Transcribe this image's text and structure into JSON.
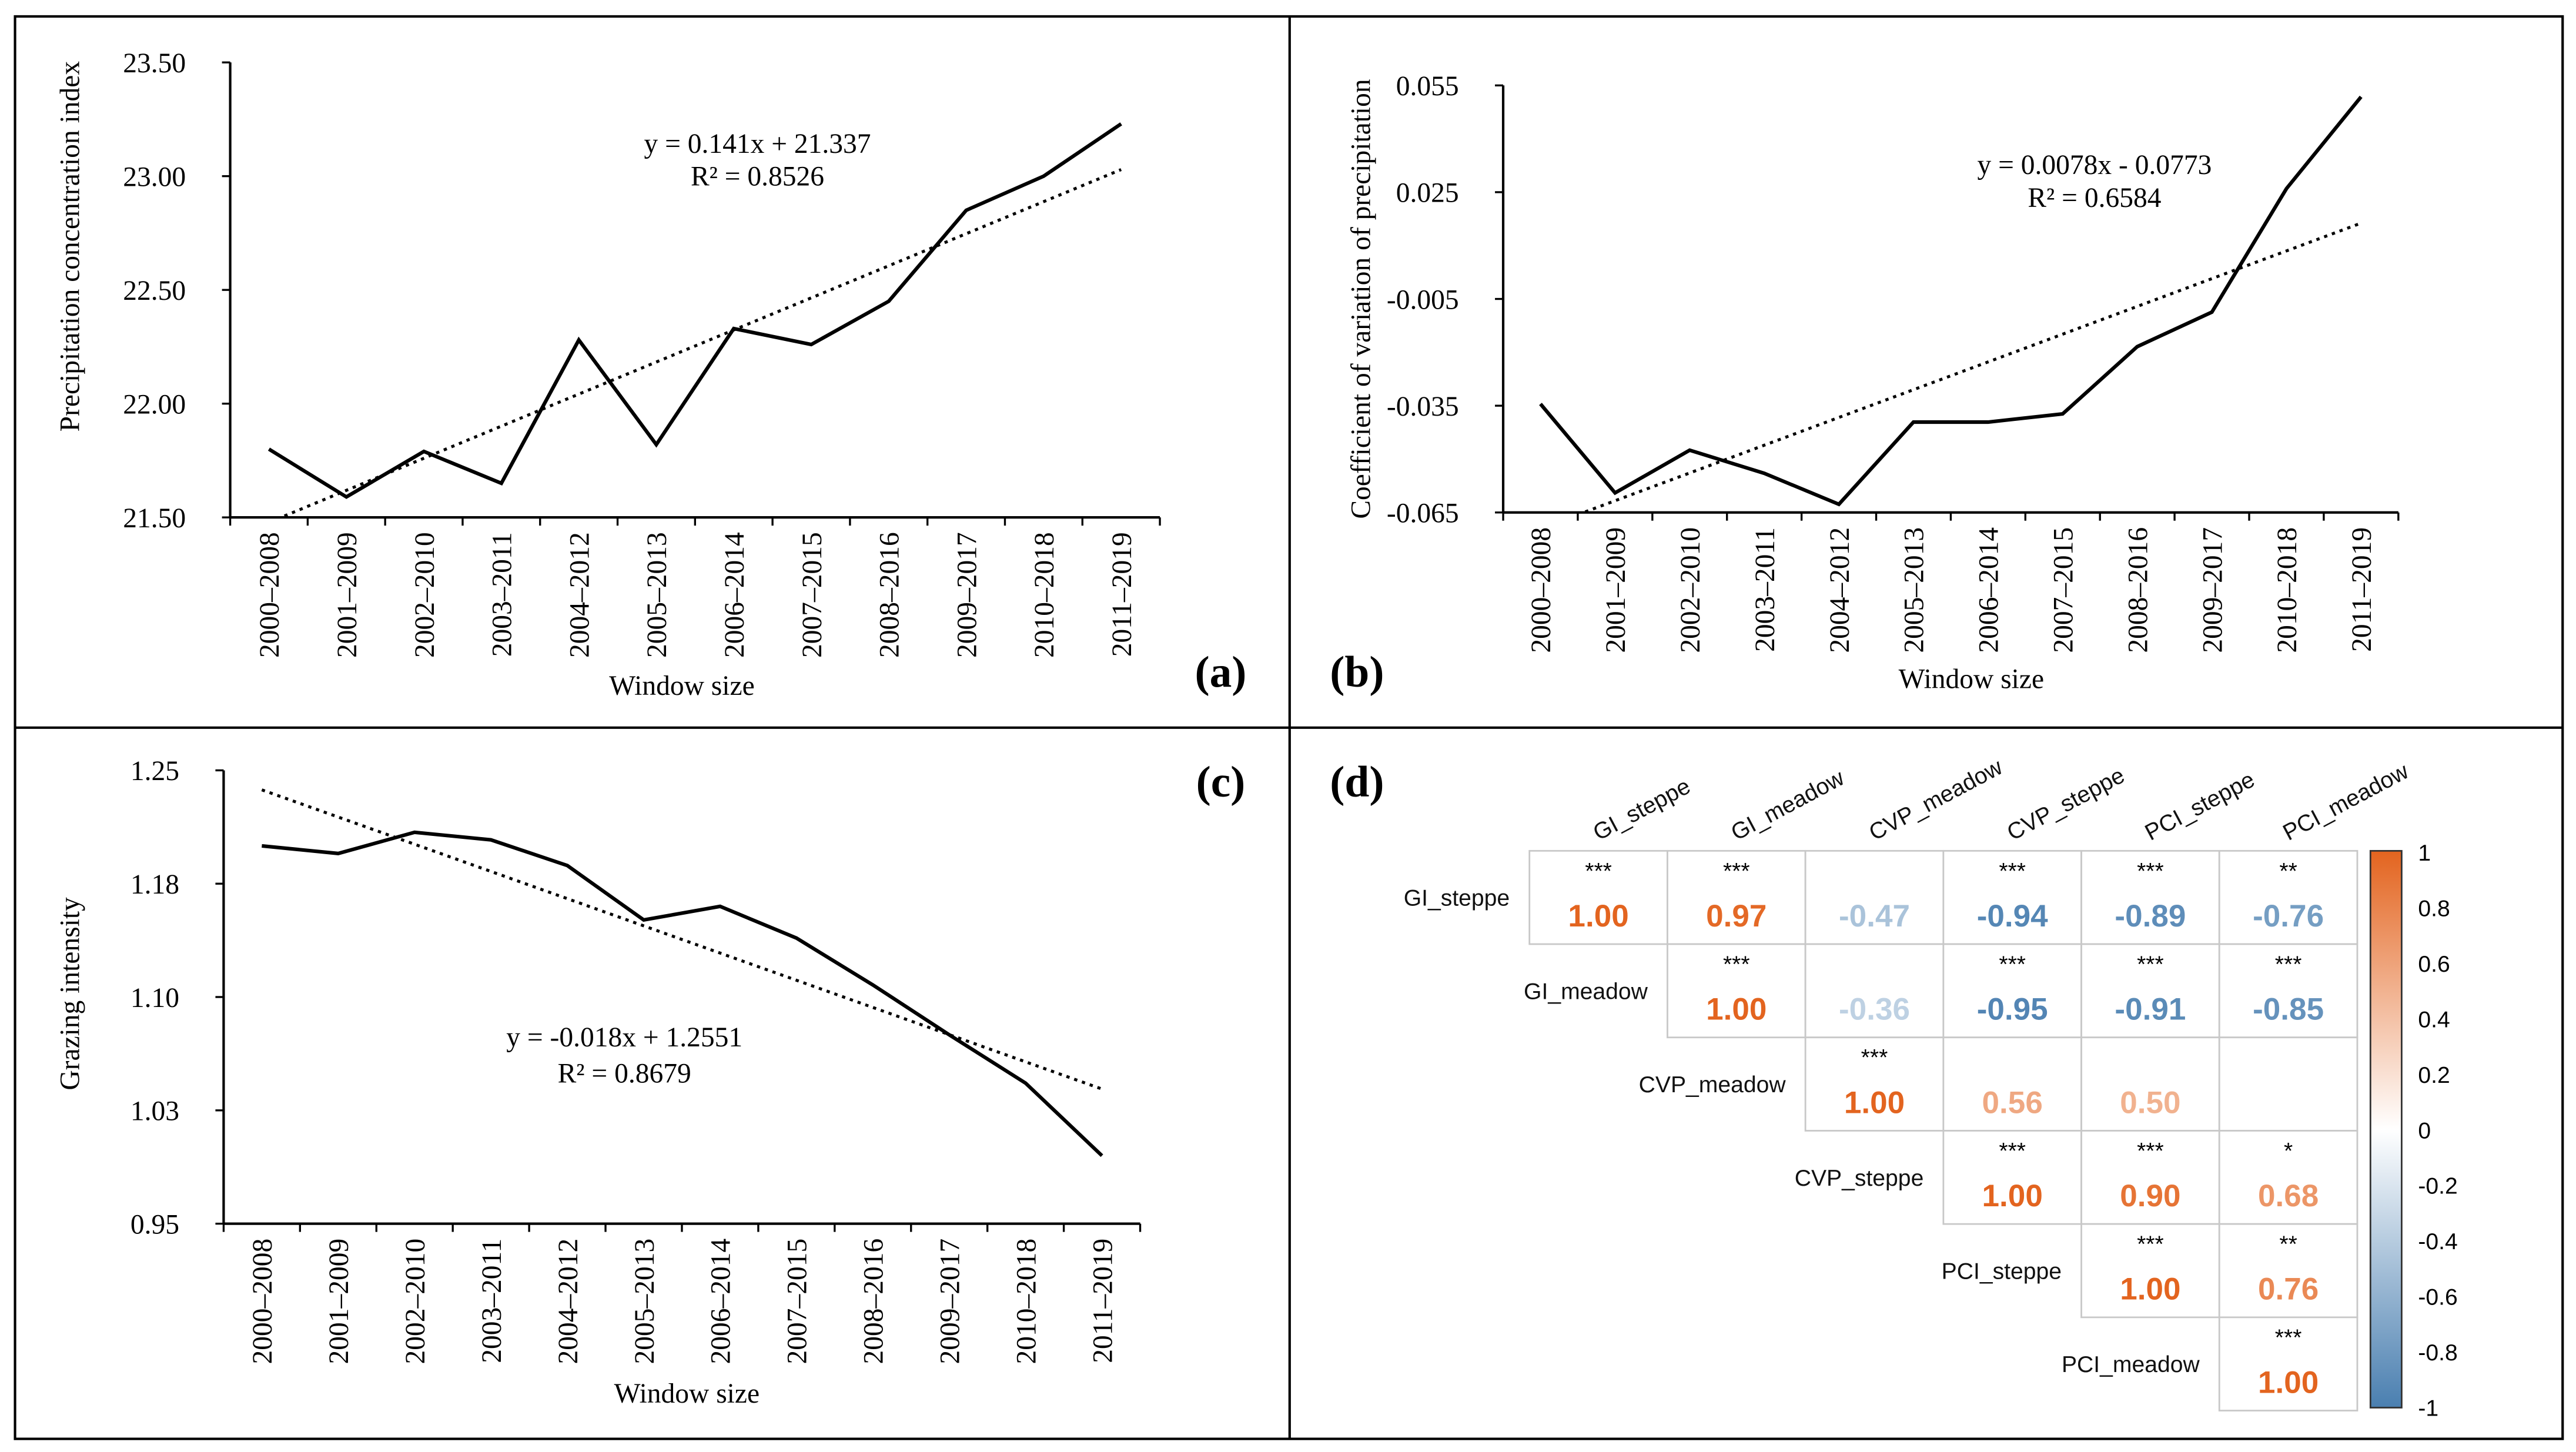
{
  "chart_data": [
    {
      "panel": "(a)",
      "type": "line",
      "xlabel": "Window size",
      "ylabel": "Precipitation concentration index",
      "categories": [
        "2000–2008",
        "2001–2009",
        "2002–2010",
        "2003–2011",
        "2004–2012",
        "2005–2013",
        "2006–2014",
        "2007–2015",
        "2008–2016",
        "2009–2017",
        "2010–2018",
        "2011–2019"
      ],
      "values": [
        21.8,
        21.59,
        21.79,
        21.65,
        22.28,
        21.82,
        22.33,
        22.26,
        22.45,
        22.85,
        23.0,
        23.23
      ],
      "ylim": [
        21.5,
        23.5
      ],
      "yticks": [
        21.5,
        22.0,
        22.5,
        23.0,
        23.5
      ],
      "yticklabels": [
        "21.50",
        "22.00",
        "22.50",
        "23.00",
        "23.50"
      ],
      "trendline": {
        "slope": 0.141,
        "intercept": 21.337,
        "style": "dotted"
      },
      "equation": "y = 0.141x + 21.337",
      "r2": "R² = 0.8526",
      "grid": false
    },
    {
      "panel": "(b)",
      "type": "line",
      "xlabel": "Window size",
      "ylabel": "Coefficient of variation of precipitation",
      "categories": [
        "2000–2008",
        "2001–2009",
        "2002–2010",
        "2003–2011",
        "2004–2012",
        "2005–2013",
        "2006–2014",
        "2007–2015",
        "2008–2016",
        "2009–2017",
        "2010–2018",
        "2011–2019"
      ],
      "values": [
        -0.0345,
        -0.0595,
        -0.0475,
        -0.054,
        -0.0627,
        -0.0396,
        -0.0396,
        -0.0373,
        -0.0184,
        -0.0087,
        0.026,
        0.0518
      ],
      "ylim": [
        -0.065,
        0.055
      ],
      "yticks": [
        -0.065,
        -0.035,
        -0.005,
        0.025,
        0.055
      ],
      "yticklabels": [
        "-0.065",
        "-0.035",
        "-0.005",
        "0.025",
        "0.055"
      ],
      "trendline": {
        "slope": 0.0078,
        "intercept": -0.0773,
        "style": "dotted"
      },
      "equation": "y = 0.0078x - 0.0773",
      "r2": "R² = 0.6584",
      "grid": false
    },
    {
      "panel": "(c)",
      "type": "line",
      "xlabel": "Window size",
      "ylabel": "Grazing intensity",
      "categories": [
        "2000–2008",
        "2001–2009",
        "2002–2010",
        "2003–2011",
        "2004–2012",
        "2005–2013",
        "2006–2014",
        "2007–2015",
        "2008–2016",
        "2009–2017",
        "2010–2018",
        "2011–2019"
      ],
      "values": [
        1.2,
        1.195,
        1.209,
        1.204,
        1.187,
        1.151,
        1.16,
        1.139,
        1.108,
        1.075,
        1.043,
        0.995
      ],
      "ylim": [
        0.95,
        1.25
      ],
      "yticks": [
        0.95,
        1.025,
        1.1,
        1.175,
        1.25
      ],
      "yticklabels": [
        "0.95",
        "1.03",
        "1.10",
        "1.18",
        "1.25"
      ],
      "trendline": {
        "slope": -0.018,
        "intercept": 1.2551,
        "style": "dotted"
      },
      "equation": "y = -0.018x + 1.2551",
      "r2": "R² = 0.8679",
      "grid": false
    },
    {
      "panel": "(d)",
      "type": "heatmap",
      "variables": [
        "GI_steppe",
        "GI_meadow",
        "CVP_meadow",
        "CVP_steppe",
        "PCI_steppe",
        "PCI_meadow"
      ],
      "matrix": [
        [
          1.0,
          0.97,
          -0.47,
          -0.94,
          -0.89,
          -0.76
        ],
        [
          null,
          1.0,
          -0.36,
          -0.95,
          -0.91,
          -0.85
        ],
        [
          null,
          null,
          1.0,
          0.56,
          0.5,
          null
        ],
        [
          null,
          null,
          null,
          1.0,
          0.9,
          0.68
        ],
        [
          null,
          null,
          null,
          null,
          1.0,
          0.76
        ],
        [
          null,
          null,
          null,
          null,
          null,
          1.0
        ]
      ],
      "significance": [
        [
          "***",
          "***",
          "",
          "***",
          "***",
          "**"
        ],
        [
          "",
          "***",
          "",
          "***",
          "***",
          "***"
        ],
        [
          "",
          "",
          "***",
          "",
          "",
          ""
        ],
        [
          "",
          "",
          "",
          "***",
          "***",
          "*"
        ],
        [
          "",
          "",
          "",
          "",
          "***",
          "**"
        ],
        [
          "",
          "",
          "",
          "",
          "",
          "***"
        ]
      ],
      "colorbar": {
        "range": [
          -1,
          1
        ],
        "ticklabels": [
          "1",
          "0.8",
          "0.6",
          "0.4",
          "0.2",
          "0",
          "-0.2",
          "-0.4",
          "-0.6",
          "-0.8",
          "-1"
        ],
        "positive_color": "#E3641F",
        "negative_color": "#4A7FB0",
        "mid_color": "#FFFFFF"
      }
    }
  ]
}
